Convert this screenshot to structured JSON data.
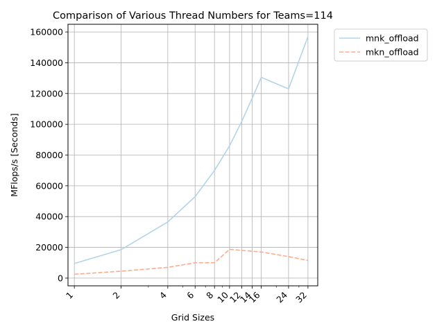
{
  "chart_data": {
    "type": "line",
    "title": "Comparison of Various Thread Numbers for Teams=114",
    "xlabel": "Grid Sizes",
    "ylabel": "MFlops/s [Seconds]",
    "x_scale": "log2",
    "x": [
      1,
      2,
      4,
      6,
      8,
      10,
      12,
      14,
      16,
      24,
      32
    ],
    "x_tick_labels": [
      "1",
      "2",
      "4",
      "6",
      "8",
      "10",
      "12",
      "14",
      "16",
      "24",
      "32"
    ],
    "xlim": [
      0.91,
      37
    ],
    "ylim": [
      -5000,
      165000
    ],
    "y_ticks": [
      0,
      20000,
      40000,
      60000,
      80000,
      100000,
      120000,
      140000,
      160000
    ],
    "grid": true,
    "legend_position": "outside-top-right",
    "series": [
      {
        "name": "mnk_offload",
        "color": "#b3d3e8",
        "dash": "solid",
        "values": [
          9500,
          18500,
          36500,
          53000,
          70000,
          86000,
          102000,
          117000,
          130500,
          123000,
          157000
        ]
      },
      {
        "name": "mkn_offload",
        "color": "#fcab8f",
        "dash": "dashed",
        "values": [
          2500,
          4500,
          7000,
          10000,
          10000,
          18700,
          18000,
          17500,
          17000,
          14000,
          11500
        ]
      }
    ]
  }
}
